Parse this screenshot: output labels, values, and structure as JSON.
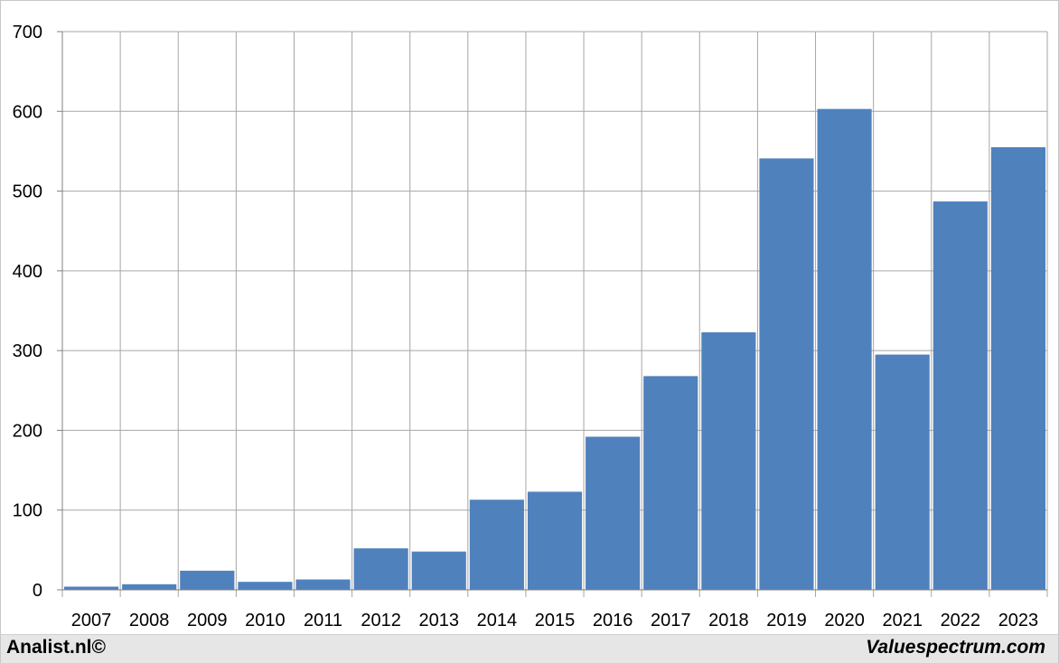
{
  "chart_data": {
    "type": "bar",
    "title": "",
    "xlabel": "",
    "ylabel": "",
    "categories": [
      "2007",
      "2008",
      "2009",
      "2010",
      "2011",
      "2012",
      "2013",
      "2014",
      "2015",
      "2016",
      "2017",
      "2018",
      "2019",
      "2020",
      "2021",
      "2022",
      "2023"
    ],
    "values": [
      4,
      7,
      24,
      10,
      13,
      52,
      48,
      113,
      123,
      192,
      268,
      323,
      541,
      603,
      295,
      487,
      555
    ],
    "ylim": [
      0,
      700
    ],
    "yticks": [
      0,
      100,
      200,
      300,
      400,
      500,
      600,
      700
    ],
    "grid": true,
    "bar_color": "#4f81bd"
  },
  "footer": {
    "left": "Analist.nl©",
    "right": "Valuespectrum.com"
  }
}
